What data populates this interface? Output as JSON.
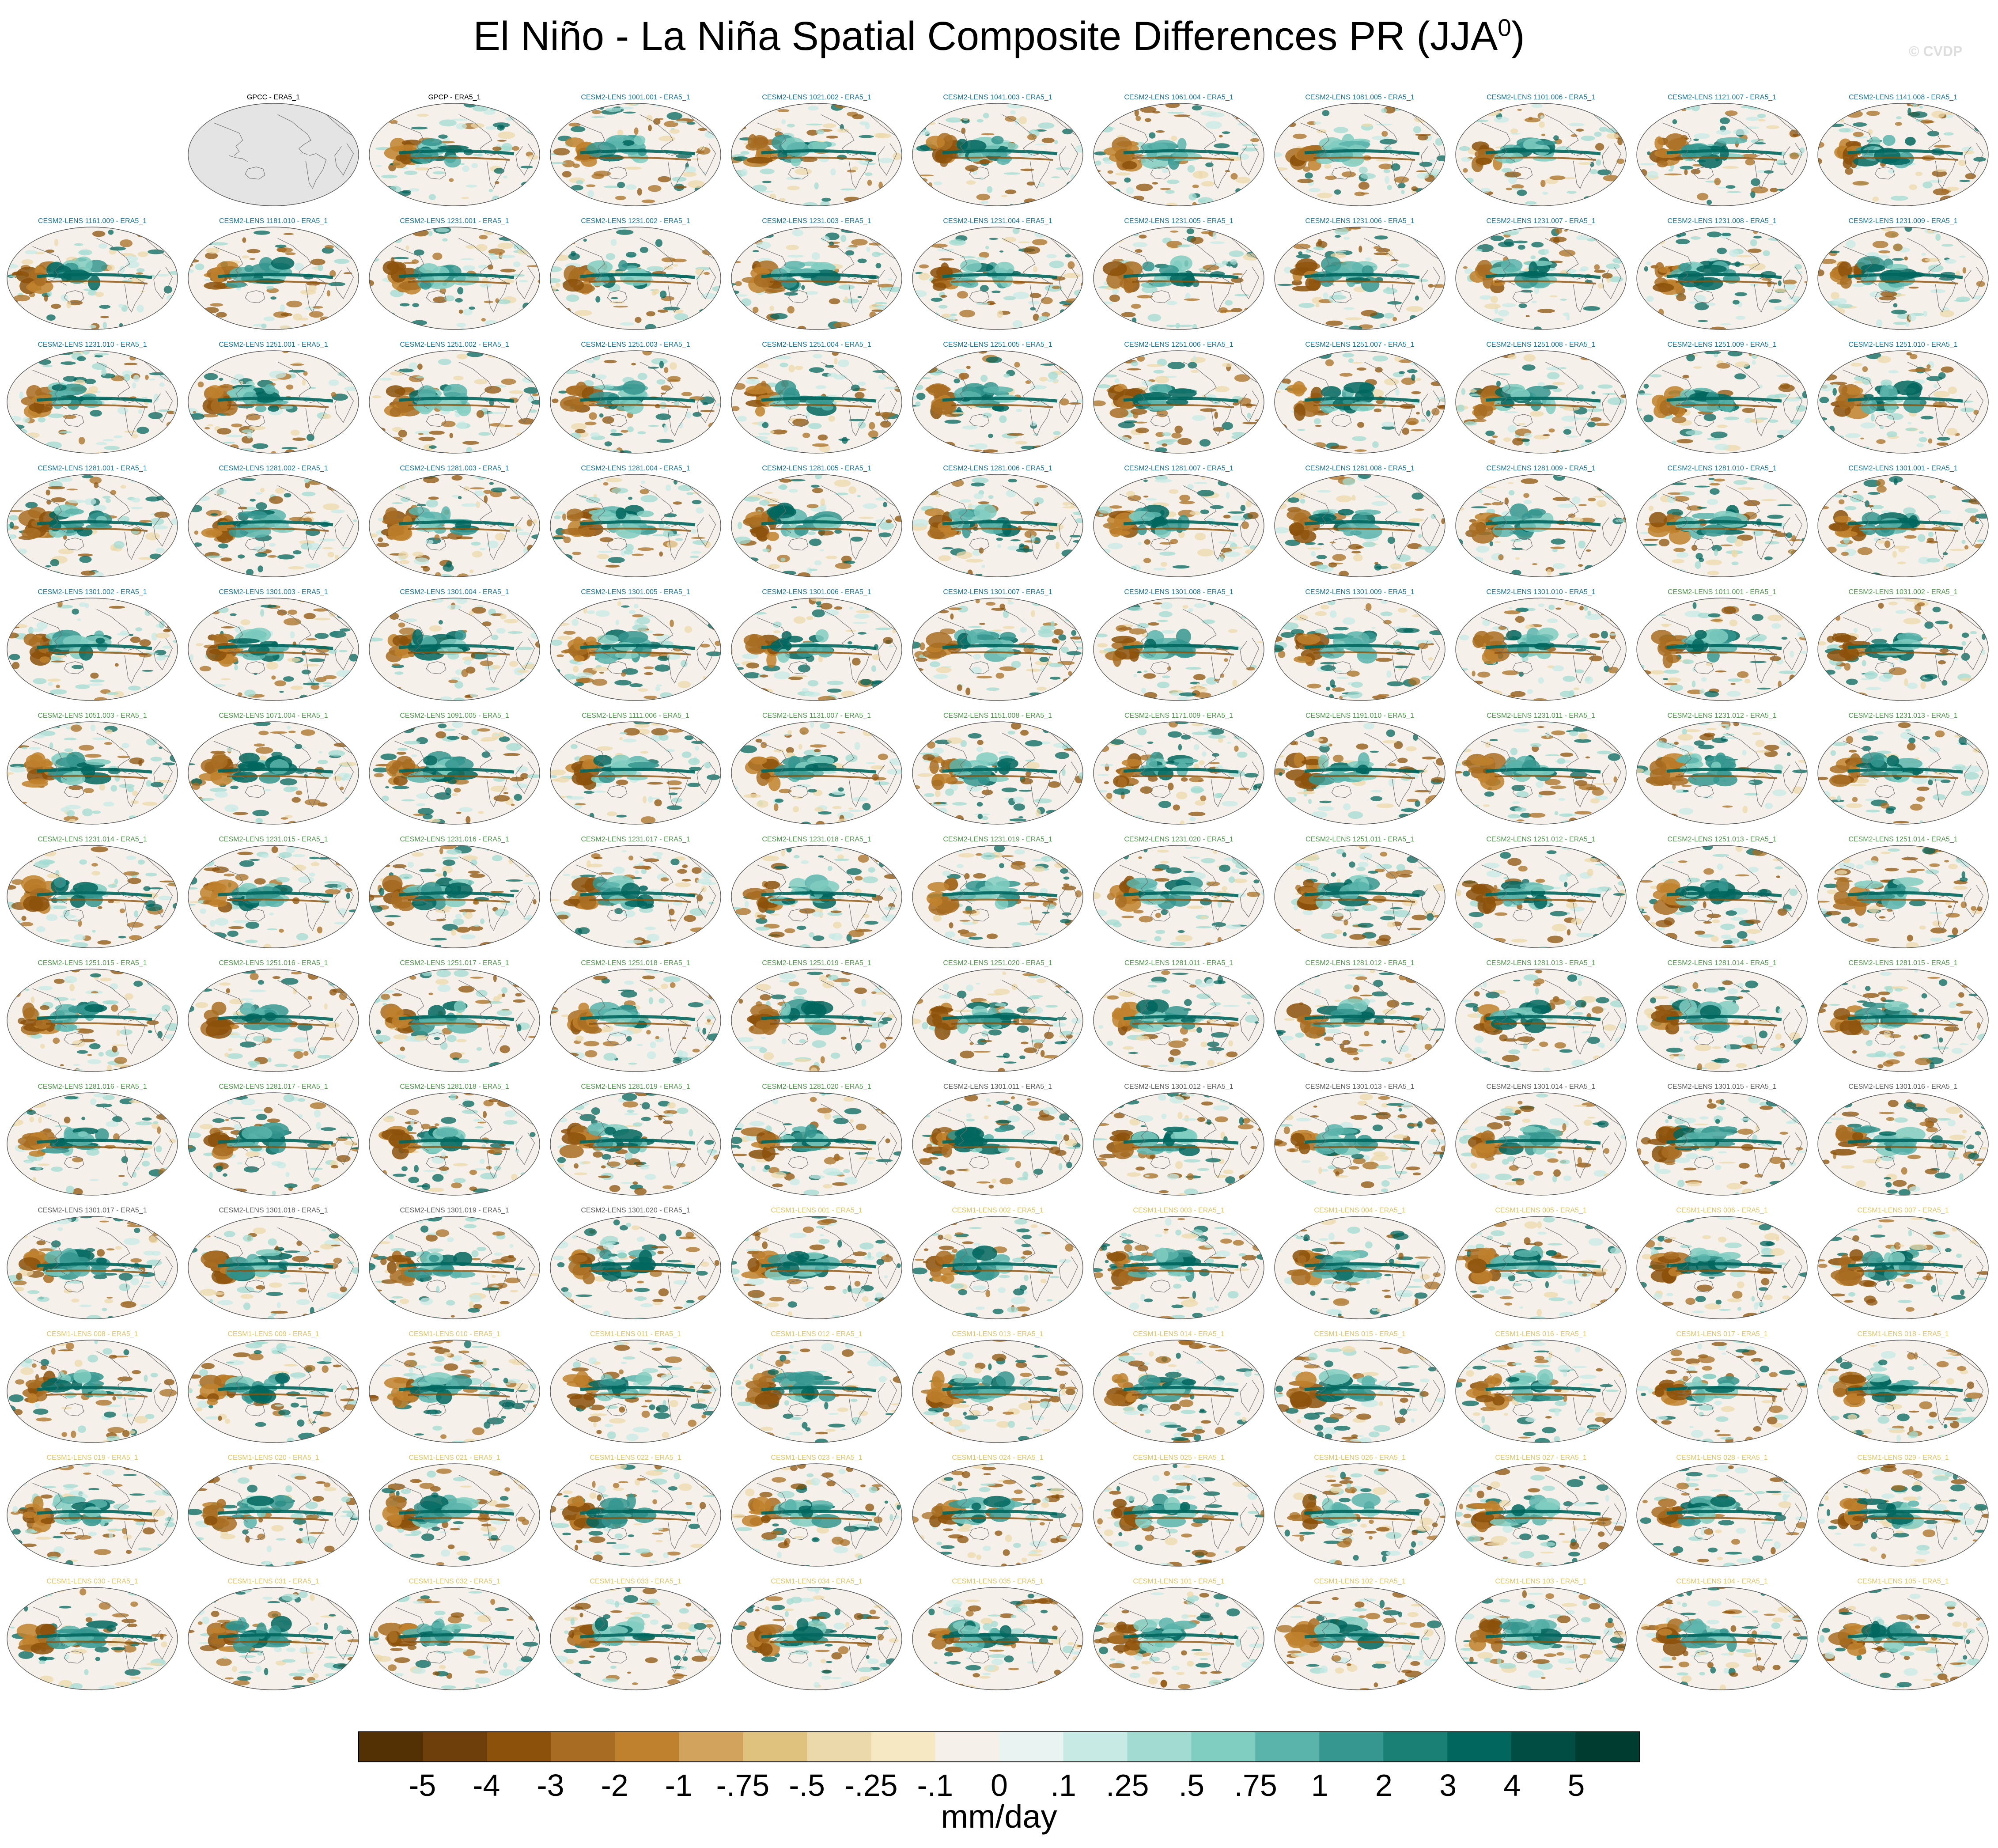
{
  "title": {
    "text": "El Niño - La Niña Spatial Composite Differences PR (JJA",
    "superscript": "0",
    "close": ")"
  },
  "credit": "© CVDP",
  "colorbar": {
    "colors": [
      "#543005",
      "#6e3f0a",
      "#8c510a",
      "#a86d22",
      "#bf812d",
      "#d1a35c",
      "#dfc27d",
      "#ecd9ab",
      "#f6e8c3",
      "#f5f1ea",
      "#e9f3f2",
      "#c7eae5",
      "#a2dbd2",
      "#80cdc1",
      "#5ab4ac",
      "#35978f",
      "#1a7f74",
      "#01665e",
      "#014c43",
      "#003c30"
    ],
    "tick_labels": [
      "-5",
      "-4",
      "-3",
      "-2",
      "-1",
      "-.75",
      "-.5",
      "-.25",
      "-.1",
      "0",
      ".1",
      ".25",
      ".5",
      ".75",
      "1",
      "2",
      "3",
      "4",
      "5"
    ],
    "units": "mm/day"
  },
  "group_colors": {
    "obs": "#000000",
    "cesm2_a": "#1a7393",
    "cesm2_b": "#51944d",
    "cesm2_c": "#5c5c5c",
    "cesm1": "#e0c468"
  },
  "panels": [
    {
      "label": "GPCC - ERA5_1",
      "group": "obs",
      "variant": "gpcc"
    },
    {
      "label": "GPCP - ERA5_1",
      "group": "obs",
      "variant": "obs"
    },
    {
      "label": "CESM2-LENS 1001.001 - ERA5_1",
      "group": "cesm2_a"
    },
    {
      "label": "CESM2-LENS 1021.002 - ERA5_1",
      "group": "cesm2_a"
    },
    {
      "label": "CESM2-LENS 1041.003 - ERA5_1",
      "group": "cesm2_a"
    },
    {
      "label": "CESM2-LENS 1061.004 - ERA5_1",
      "group": "cesm2_a"
    },
    {
      "label": "CESM2-LENS 1081.005 - ERA5_1",
      "group": "cesm2_a"
    },
    {
      "label": "CESM2-LENS 1101.006 - ERA5_1",
      "group": "cesm2_a"
    },
    {
      "label": "CESM2-LENS 1121.007 - ERA5_1",
      "group": "cesm2_a"
    },
    {
      "label": "CESM2-LENS 1141.008 - ERA5_1",
      "group": "cesm2_a"
    },
    {
      "label": "CESM2-LENS 1161.009 - ERA5_1",
      "group": "cesm2_a"
    },
    {
      "label": "CESM2-LENS 1181.010 - ERA5_1",
      "group": "cesm2_a"
    },
    {
      "label": "CESM2-LENS 1231.001 - ERA5_1",
      "group": "cesm2_a"
    },
    {
      "label": "CESM2-LENS 1231.002 - ERA5_1",
      "group": "cesm2_a"
    },
    {
      "label": "CESM2-LENS 1231.003 - ERA5_1",
      "group": "cesm2_a"
    },
    {
      "label": "CESM2-LENS 1231.004 - ERA5_1",
      "group": "cesm2_a"
    },
    {
      "label": "CESM2-LENS 1231.005 - ERA5_1",
      "group": "cesm2_a"
    },
    {
      "label": "CESM2-LENS 1231.006 - ERA5_1",
      "group": "cesm2_a"
    },
    {
      "label": "CESM2-LENS 1231.007 - ERA5_1",
      "group": "cesm2_a"
    },
    {
      "label": "CESM2-LENS 1231.008 - ERA5_1",
      "group": "cesm2_a"
    },
    {
      "label": "CESM2-LENS 1231.009 - ERA5_1",
      "group": "cesm2_a"
    },
    {
      "label": "CESM2-LENS 1231.010 - ERA5_1",
      "group": "cesm2_a"
    },
    {
      "label": "CESM2-LENS 1251.001 - ERA5_1",
      "group": "cesm2_a"
    },
    {
      "label": "CESM2-LENS 1251.002 - ERA5_1",
      "group": "cesm2_a"
    },
    {
      "label": "CESM2-LENS 1251.003 - ERA5_1",
      "group": "cesm2_a"
    },
    {
      "label": "CESM2-LENS 1251.004 - ERA5_1",
      "group": "cesm2_a"
    },
    {
      "label": "CESM2-LENS 1251.005 - ERA5_1",
      "group": "cesm2_a"
    },
    {
      "label": "CESM2-LENS 1251.006 - ERA5_1",
      "group": "cesm2_a"
    },
    {
      "label": "CESM2-LENS 1251.007 - ERA5_1",
      "group": "cesm2_a"
    },
    {
      "label": "CESM2-LENS 1251.008 - ERA5_1",
      "group": "cesm2_a"
    },
    {
      "label": "CESM2-LENS 1251.009 - ERA5_1",
      "group": "cesm2_a"
    },
    {
      "label": "CESM2-LENS 1251.010 - ERA5_1",
      "group": "cesm2_a"
    },
    {
      "label": "CESM2-LENS 1281.001 - ERA5_1",
      "group": "cesm2_a"
    },
    {
      "label": "CESM2-LENS 1281.002 - ERA5_1",
      "group": "cesm2_a"
    },
    {
      "label": "CESM2-LENS 1281.003 - ERA5_1",
      "group": "cesm2_a"
    },
    {
      "label": "CESM2-LENS 1281.004 - ERA5_1",
      "group": "cesm2_a"
    },
    {
      "label": "CESM2-LENS 1281.005 - ERA5_1",
      "group": "cesm2_a"
    },
    {
      "label": "CESM2-LENS 1281.006 - ERA5_1",
      "group": "cesm2_a"
    },
    {
      "label": "CESM2-LENS 1281.007 - ERA5_1",
      "group": "cesm2_a"
    },
    {
      "label": "CESM2-LENS 1281.008 - ERA5_1",
      "group": "cesm2_a"
    },
    {
      "label": "CESM2-LENS 1281.009 - ERA5_1",
      "group": "cesm2_a"
    },
    {
      "label": "CESM2-LENS 1281.010 - ERA5_1",
      "group": "cesm2_a"
    },
    {
      "label": "CESM2-LENS 1301.001 - ERA5_1",
      "group": "cesm2_a"
    },
    {
      "label": "CESM2-LENS 1301.002 - ERA5_1",
      "group": "cesm2_a"
    },
    {
      "label": "CESM2-LENS 1301.003 - ERA5_1",
      "group": "cesm2_a"
    },
    {
      "label": "CESM2-LENS 1301.004 - ERA5_1",
      "group": "cesm2_a"
    },
    {
      "label": "CESM2-LENS 1301.005 - ERA5_1",
      "group": "cesm2_a"
    },
    {
      "label": "CESM2-LENS 1301.006 - ERA5_1",
      "group": "cesm2_a"
    },
    {
      "label": "CESM2-LENS 1301.007 - ERA5_1",
      "group": "cesm2_a"
    },
    {
      "label": "CESM2-LENS 1301.008 - ERA5_1",
      "group": "cesm2_a"
    },
    {
      "label": "CESM2-LENS 1301.009 - ERA5_1",
      "group": "cesm2_a"
    },
    {
      "label": "CESM2-LENS 1301.010 - ERA5_1",
      "group": "cesm2_a"
    },
    {
      "label": "CESM2-LENS 1011.001 - ERA5_1",
      "group": "cesm2_b"
    },
    {
      "label": "CESM2-LENS 1031.002 - ERA5_1",
      "group": "cesm2_b"
    },
    {
      "label": "CESM2-LENS 1051.003 - ERA5_1",
      "group": "cesm2_b"
    },
    {
      "label": "CESM2-LENS 1071.004 - ERA5_1",
      "group": "cesm2_b"
    },
    {
      "label": "CESM2-LENS 1091.005 - ERA5_1",
      "group": "cesm2_b"
    },
    {
      "label": "CESM2-LENS 1111.006 - ERA5_1",
      "group": "cesm2_b"
    },
    {
      "label": "CESM2-LENS 1131.007 - ERA5_1",
      "group": "cesm2_b"
    },
    {
      "label": "CESM2-LENS 1151.008 - ERA5_1",
      "group": "cesm2_b"
    },
    {
      "label": "CESM2-LENS 1171.009 - ERA5_1",
      "group": "cesm2_b"
    },
    {
      "label": "CESM2-LENS 1191.010 - ERA5_1",
      "group": "cesm2_b"
    },
    {
      "label": "CESM2-LENS 1231.011 - ERA5_1",
      "group": "cesm2_b"
    },
    {
      "label": "CESM2-LENS 1231.012 - ERA5_1",
      "group": "cesm2_b"
    },
    {
      "label": "CESM2-LENS 1231.013 - ERA5_1",
      "group": "cesm2_b"
    },
    {
      "label": "CESM2-LENS 1231.014 - ERA5_1",
      "group": "cesm2_b"
    },
    {
      "label": "CESM2-LENS 1231.015 - ERA5_1",
      "group": "cesm2_b"
    },
    {
      "label": "CESM2-LENS 1231.016 - ERA5_1",
      "group": "cesm2_b"
    },
    {
      "label": "CESM2-LENS 1231.017 - ERA5_1",
      "group": "cesm2_b"
    },
    {
      "label": "CESM2-LENS 1231.018 - ERA5_1",
      "group": "cesm2_b"
    },
    {
      "label": "CESM2-LENS 1231.019 - ERA5_1",
      "group": "cesm2_b"
    },
    {
      "label": "CESM2-LENS 1231.020 - ERA5_1",
      "group": "cesm2_b"
    },
    {
      "label": "CESM2-LENS 1251.011 - ERA5_1",
      "group": "cesm2_b"
    },
    {
      "label": "CESM2-LENS 1251.012 - ERA5_1",
      "group": "cesm2_b"
    },
    {
      "label": "CESM2-LENS 1251.013 - ERA5_1",
      "group": "cesm2_b"
    },
    {
      "label": "CESM2-LENS 1251.014 - ERA5_1",
      "group": "cesm2_b"
    },
    {
      "label": "CESM2-LENS 1251.015 - ERA5_1",
      "group": "cesm2_b"
    },
    {
      "label": "CESM2-LENS 1251.016 - ERA5_1",
      "group": "cesm2_b"
    },
    {
      "label": "CESM2-LENS 1251.017 - ERA5_1",
      "group": "cesm2_b"
    },
    {
      "label": "CESM2-LENS 1251.018 - ERA5_1",
      "group": "cesm2_b"
    },
    {
      "label": "CESM2-LENS 1251.019 - ERA5_1",
      "group": "cesm2_b"
    },
    {
      "label": "CESM2-LENS 1251.020 - ERA5_1",
      "group": "cesm2_b"
    },
    {
      "label": "CESM2-LENS 1281.011 - ERA5_1",
      "group": "cesm2_b"
    },
    {
      "label": "CESM2-LENS 1281.012 - ERA5_1",
      "group": "cesm2_b"
    },
    {
      "label": "CESM2-LENS 1281.013 - ERA5_1",
      "group": "cesm2_b"
    },
    {
      "label": "CESM2-LENS 1281.014 - ERA5_1",
      "group": "cesm2_b"
    },
    {
      "label": "CESM2-LENS 1281.015 - ERA5_1",
      "group": "cesm2_b"
    },
    {
      "label": "CESM2-LENS 1281.016 - ERA5_1",
      "group": "cesm2_b"
    },
    {
      "label": "CESM2-LENS 1281.017 - ERA5_1",
      "group": "cesm2_b"
    },
    {
      "label": "CESM2-LENS 1281.018 - ERA5_1",
      "group": "cesm2_b"
    },
    {
      "label": "CESM2-LENS 1281.019 - ERA5_1",
      "group": "cesm2_b"
    },
    {
      "label": "CESM2-LENS 1281.020 - ERA5_1",
      "group": "cesm2_b"
    },
    {
      "label": "CESM2-LENS 1301.011 - ERA5_1",
      "group": "cesm2_c"
    },
    {
      "label": "CESM2-LENS 1301.012 - ERA5_1",
      "group": "cesm2_c"
    },
    {
      "label": "CESM2-LENS 1301.013 - ERA5_1",
      "group": "cesm2_c"
    },
    {
      "label": "CESM2-LENS 1301.014 - ERA5_1",
      "group": "cesm2_c"
    },
    {
      "label": "CESM2-LENS 1301.015 - ERA5_1",
      "group": "cesm2_c"
    },
    {
      "label": "CESM2-LENS 1301.016 - ERA5_1",
      "group": "cesm2_c"
    },
    {
      "label": "CESM2-LENS 1301.017 - ERA5_1",
      "group": "cesm2_c"
    },
    {
      "label": "CESM2-LENS 1301.018 - ERA5_1",
      "group": "cesm2_c"
    },
    {
      "label": "CESM2-LENS 1301.019 - ERA5_1",
      "group": "cesm2_c"
    },
    {
      "label": "CESM2-LENS 1301.020 - ERA5_1",
      "group": "cesm2_c"
    },
    {
      "label": "CESM1-LENS 001 - ERA5_1",
      "group": "cesm1"
    },
    {
      "label": "CESM1-LENS 002 - ERA5_1",
      "group": "cesm1"
    },
    {
      "label": "CESM1-LENS 003 - ERA5_1",
      "group": "cesm1"
    },
    {
      "label": "CESM1-LENS 004 - ERA5_1",
      "group": "cesm1"
    },
    {
      "label": "CESM1-LENS 005 - ERA5_1",
      "group": "cesm1"
    },
    {
      "label": "CESM1-LENS 006 - ERA5_1",
      "group": "cesm1"
    },
    {
      "label": "CESM1-LENS 007 - ERA5_1",
      "group": "cesm1"
    },
    {
      "label": "CESM1-LENS 008 - ERA5_1",
      "group": "cesm1"
    },
    {
      "label": "CESM1-LENS 009 - ERA5_1",
      "group": "cesm1"
    },
    {
      "label": "CESM1-LENS 010 - ERA5_1",
      "group": "cesm1"
    },
    {
      "label": "CESM1-LENS 011 - ERA5_1",
      "group": "cesm1"
    },
    {
      "label": "CESM1-LENS 012 - ERA5_1",
      "group": "cesm1"
    },
    {
      "label": "CESM1-LENS 013 - ERA5_1",
      "group": "cesm1"
    },
    {
      "label": "CESM1-LENS 014 - ERA5_1",
      "group": "cesm1"
    },
    {
      "label": "CESM1-LENS 015 - ERA5_1",
      "group": "cesm1"
    },
    {
      "label": "CESM1-LENS 016 - ERA5_1",
      "group": "cesm1"
    },
    {
      "label": "CESM1-LENS 017 - ERA5_1",
      "group": "cesm1"
    },
    {
      "label": "CESM1-LENS 018 - ERA5_1",
      "group": "cesm1"
    },
    {
      "label": "CESM1-LENS 019 - ERA5_1",
      "group": "cesm1"
    },
    {
      "label": "CESM1-LENS 020 - ERA5_1",
      "group": "cesm1"
    },
    {
      "label": "CESM1-LENS 021 - ERA5_1",
      "group": "cesm1"
    },
    {
      "label": "CESM1-LENS 022 - ERA5_1",
      "group": "cesm1"
    },
    {
      "label": "CESM1-LENS 023 - ERA5_1",
      "group": "cesm1"
    },
    {
      "label": "CESM1-LENS 024 - ERA5_1",
      "group": "cesm1"
    },
    {
      "label": "CESM1-LENS 025 - ERA5_1",
      "group": "cesm1"
    },
    {
      "label": "CESM1-LENS 026 - ERA5_1",
      "group": "cesm1"
    },
    {
      "label": "CESM1-LENS 027 - ERA5_1",
      "group": "cesm1"
    },
    {
      "label": "CESM1-LENS 028 - ERA5_1",
      "group": "cesm1"
    },
    {
      "label": "CESM1-LENS 029 - ERA5_1",
      "group": "cesm1"
    },
    {
      "label": "CESM1-LENS 030 - ERA5_1",
      "group": "cesm1"
    },
    {
      "label": "CESM1-LENS 031 - ERA5_1",
      "group": "cesm1"
    },
    {
      "label": "CESM1-LENS 032 - ERA5_1",
      "group": "cesm1"
    },
    {
      "label": "CESM1-LENS 033 - ERA5_1",
      "group": "cesm1"
    },
    {
      "label": "CESM1-LENS 034 - ERA5_1",
      "group": "cesm1"
    },
    {
      "label": "CESM1-LENS 035 - ERA5_1",
      "group": "cesm1"
    },
    {
      "label": "CESM1-LENS 101 - ERA5_1",
      "group": "cesm1"
    },
    {
      "label": "CESM1-LENS 102 - ERA5_1",
      "group": "cesm1"
    },
    {
      "label": "CESM1-LENS 103 - ERA5_1",
      "group": "cesm1"
    },
    {
      "label": "CESM1-LENS 104 - ERA5_1",
      "group": "cesm1"
    },
    {
      "label": "CESM1-LENS 105 - ERA5_1",
      "group": "cesm1"
    }
  ]
}
